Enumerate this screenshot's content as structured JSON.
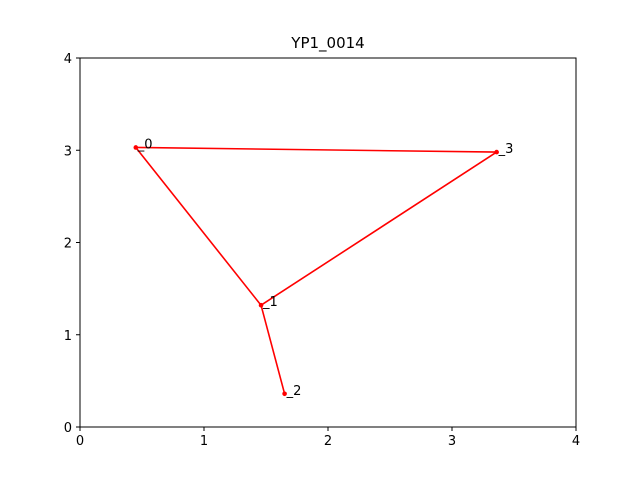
{
  "chart_data": {
    "type": "line",
    "title": "YP1_0014",
    "xlim": [
      0,
      4
    ],
    "ylim": [
      0,
      4
    ],
    "xticks": [
      "0",
      "1",
      "2",
      "3",
      "4"
    ],
    "yticks": [
      "0",
      "1",
      "2",
      "3",
      "4"
    ],
    "grid": false,
    "color": "#ff0000",
    "points": [
      {
        "label": "_0",
        "x": 0.45,
        "y": 3.03
      },
      {
        "label": "_1",
        "x": 1.46,
        "y": 1.32
      },
      {
        "label": "_2",
        "x": 1.65,
        "y": 0.36
      },
      {
        "label": "_3",
        "x": 3.36,
        "y": 2.98
      }
    ],
    "edges": [
      [
        0,
        1
      ],
      [
        1,
        2
      ],
      [
        1,
        3
      ],
      [
        3,
        0
      ]
    ]
  }
}
